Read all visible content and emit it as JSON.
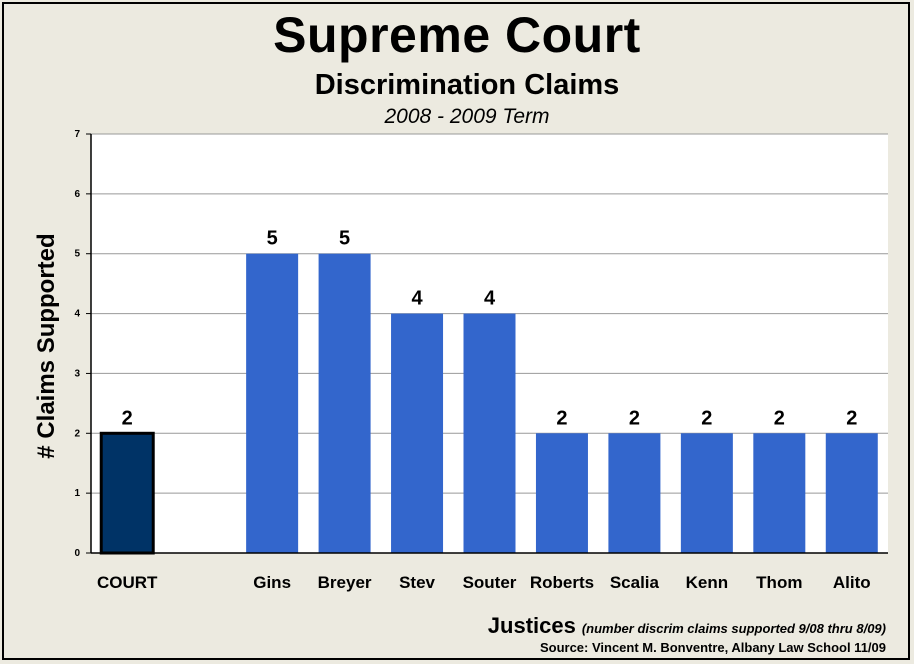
{
  "title": "Supreme Court",
  "subtitle": "Discrimination Claims",
  "term": "2008 - 2009 Term",
  "x_title": "Justices",
  "x_note": "(number discrim claims supported 9/08 thru 8/09)",
  "source": "Source: Vincent M. Bonventre, Albany Law School  11/09",
  "colors": {
    "court_bar": "#003366",
    "justice_bar": "#3366CC",
    "plot_bg": "#FFFFFF",
    "page_bg": "#ECEAE0",
    "grid": "#999999"
  },
  "chart_data": {
    "type": "bar",
    "title": "Supreme Court",
    "subtitle": "Discrimination Claims",
    "xlabel": "Justices",
    "ylabel": "# Claims Supported",
    "ylim": [
      0,
      7
    ],
    "yticks": [
      0,
      1,
      2,
      3,
      4,
      5,
      6,
      7
    ],
    "grid": true,
    "categories": [
      "COURT",
      "",
      "Gins",
      "Breyer",
      "Stev",
      "Souter",
      "Roberts",
      "Scalia",
      "Kenn",
      "Thom",
      "Alito"
    ],
    "values": [
      2,
      null,
      5,
      5,
      4,
      4,
      2,
      2,
      2,
      2,
      2
    ],
    "data_labels": [
      "2",
      "",
      "5",
      "5",
      "4",
      "4",
      "2",
      "2",
      "2",
      "2",
      "2"
    ],
    "bar_colors": [
      "#003366",
      null,
      "#3366CC",
      "#3366CC",
      "#3366CC",
      "#3366CC",
      "#3366CC",
      "#3366CC",
      "#3366CC",
      "#3366CC",
      "#3366CC"
    ],
    "legend": "none"
  }
}
